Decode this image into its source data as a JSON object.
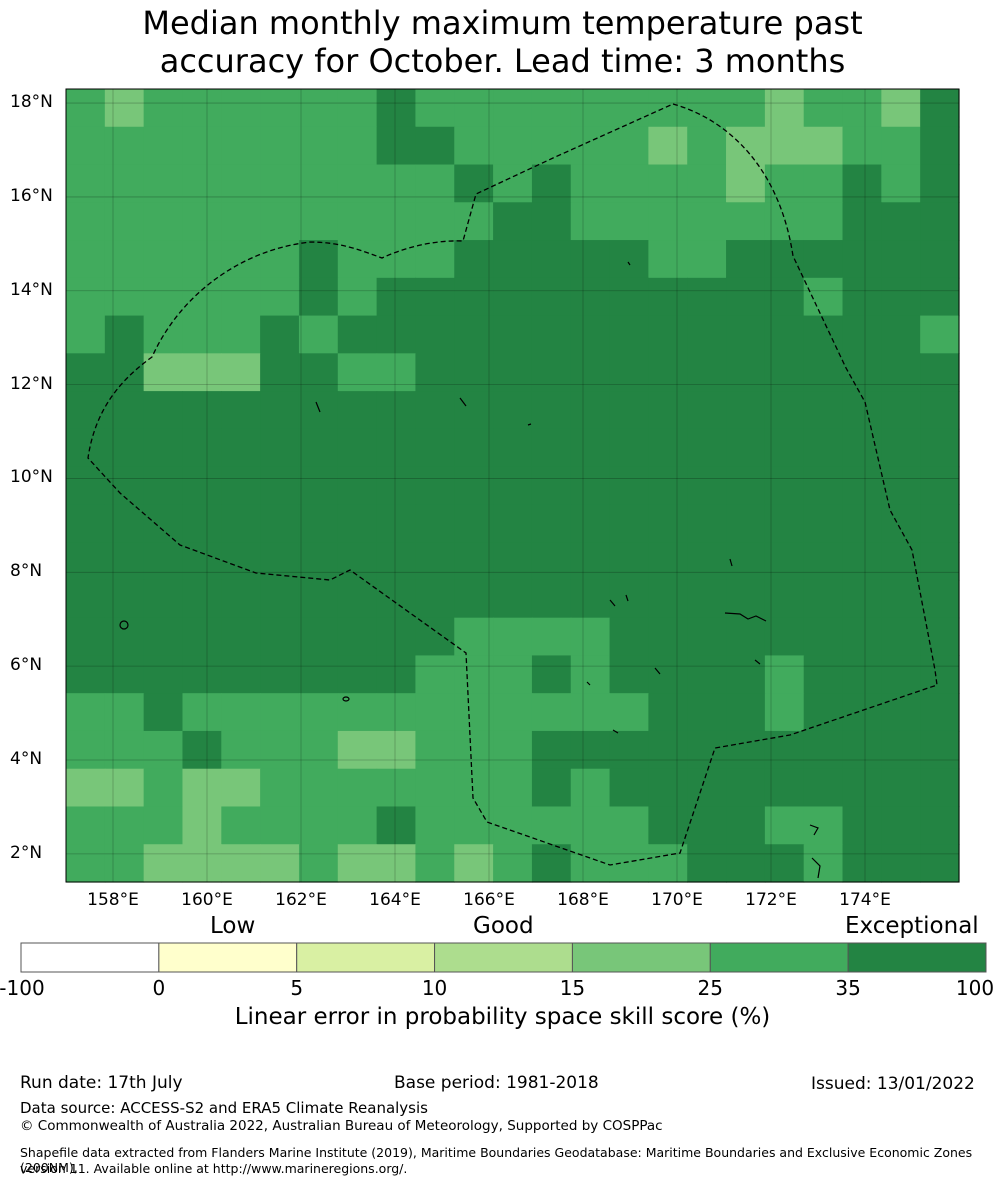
{
  "title": {
    "line1": "Median monthly maximum temperature past",
    "line2": "accuracy for October. Lead time: 3 months"
  },
  "map": {
    "lat_labels": [
      "18°N",
      "16°N",
      "14°N",
      "12°N",
      "10°N",
      "8°N",
      "6°N",
      "4°N",
      "2°N"
    ],
    "lon_labels": [
      "158°E",
      "160°E",
      "162°E",
      "164°E",
      "166°E",
      "168°E",
      "170°E",
      "172°E",
      "174°E"
    ],
    "extent": {
      "lon_min": 157.0,
      "lon_max": 176.0,
      "lat_min": 1.4,
      "lat_max": 18.3
    },
    "grid": "on",
    "boundary_style": "dashed",
    "grid_cells_note": "cell level index: 1 = 0-5, 2 = 5-10, 3 = 10-15, 4 = 15-25, 5 = 25-35, 6 = 35-100"
  },
  "colorbar": {
    "categories": [
      "Low",
      "Good",
      "Exceptional"
    ],
    "bounds": [
      "-100",
      "0",
      "5",
      "10",
      "15",
      "25",
      "35",
      "100"
    ],
    "colors": [
      "#ffffff",
      "#ffffcc",
      "#d9f0a3",
      "#addd8e",
      "#78c679",
      "#41ab5d",
      "#238443"
    ],
    "label": "Linear error in probability space skill score (%)"
  },
  "footer": {
    "run_date": "Run date: 17th July",
    "base_period": "Base period: 1981-2018",
    "issued": "Issued: 13/01/2022",
    "data_source": "Data source: ACCESS-S2 and ERA5 Climate Reanalysis",
    "copyright": "© Commonwealth of Australia 2022, Australian Bureau of Meteorology, Supported by COSPPac",
    "shapefile_line1": "Shapefile data extracted from Flanders Marine Institute (2019), Maritime Boundaries Geodatabase: Maritime Boundaries and Exclusive Economic Zones (200NM),",
    "shapefile_line2": "version 11. Available online at http://www.marineregions.org/."
  }
}
